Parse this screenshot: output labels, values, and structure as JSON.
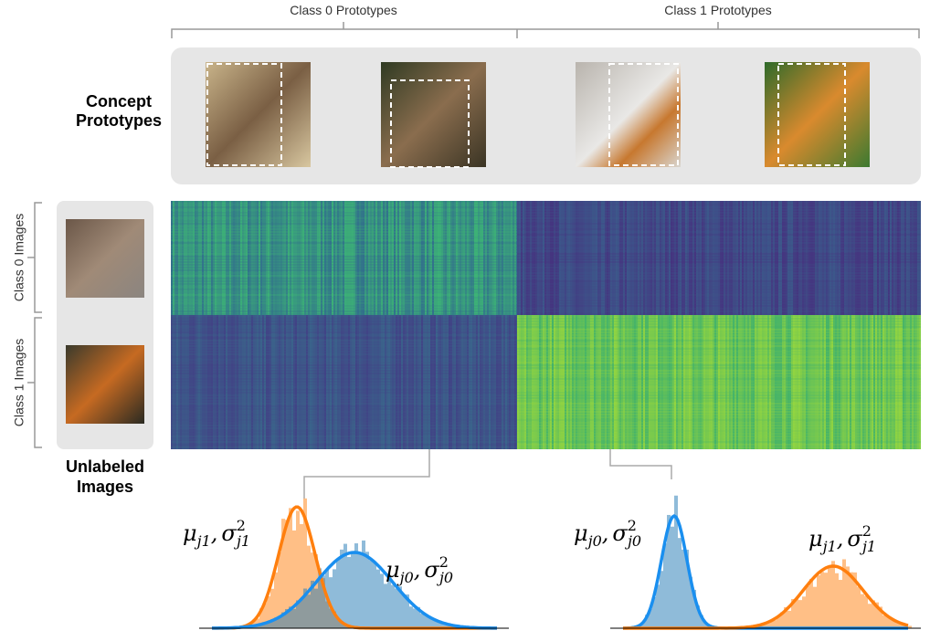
{
  "header": {
    "class0_prototypes": "Class 0 Prototypes",
    "class1_prototypes": "Class 1 Prototypes"
  },
  "side": {
    "concept_prototypes": [
      "Concept",
      "Prototypes"
    ],
    "class0_images": "Class 0 Images",
    "class1_images": "Class 1 Images",
    "unlabeled_images": [
      "Unlabeled",
      "Images"
    ]
  },
  "annotations": [
    {
      "mu": "μ",
      "mu_sub": "j1",
      "sep": ",",
      "sigma": "σ",
      "sigma_sup": "2",
      "sigma_sub": "j1"
    },
    {
      "mu": "μ",
      "mu_sub": "j0",
      "sep": ",",
      "sigma": "σ",
      "sigma_sup": "2",
      "sigma_sub": "j0"
    },
    {
      "mu": "μ",
      "mu_sub": "j0",
      "sep": ",",
      "sigma": "σ",
      "sigma_sup": "2",
      "sigma_sub": "j0"
    },
    {
      "mu": "μ",
      "mu_sub": "j1",
      "sep": ",",
      "sigma": "σ",
      "sigma_sup": "2",
      "sigma_sub": "j1"
    }
  ]
}
